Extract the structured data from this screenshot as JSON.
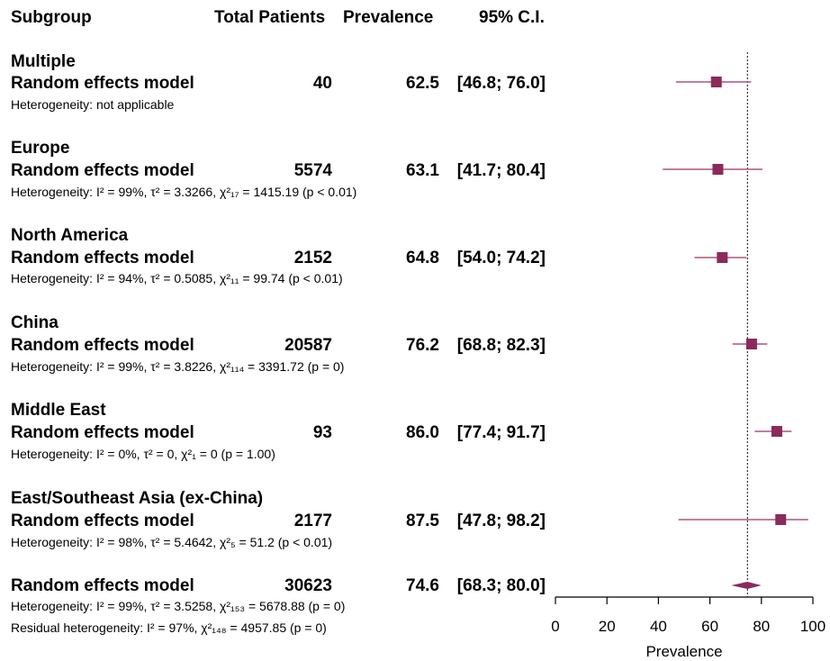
{
  "header": {
    "subgroup": "Subgroup",
    "total": "Total Patients",
    "prevalence": "Prevalence",
    "ci": "95% C.I."
  },
  "groups": [
    {
      "name": "Multiple",
      "model": "Random effects model",
      "total": "40",
      "prev": "62.5",
      "ci": "[46.8; 76.0]",
      "het": "Heterogeneity: not applicable"
    },
    {
      "name": "Europe",
      "model": "Random effects model",
      "total": "5574",
      "prev": "63.1",
      "ci": "[41.7; 80.4]",
      "het": "Heterogeneity: I² = 99%, τ² = 3.3266, χ²₁₇ = 1415.19 (p < 0.01)"
    },
    {
      "name": "North America",
      "model": "Random effects model",
      "total": "2152",
      "prev": "64.8",
      "ci": "[54.0; 74.2]",
      "het": "Heterogeneity: I² = 94%, τ² = 0.5085, χ²₁₁ = 99.74 (p < 0.01)"
    },
    {
      "name": "China",
      "model": "Random effects model",
      "total": "20587",
      "prev": "76.2",
      "ci": "[68.8; 82.3]",
      "het": "Heterogeneity: I² = 99%, τ² = 3.8226, χ²₁₁₄ = 3391.72 (p = 0)"
    },
    {
      "name": "Middle East",
      "model": "Random effects model",
      "total": "93",
      "prev": "86.0",
      "ci": "[77.4; 91.7]",
      "het": "Heterogeneity: I² = 0%, τ² = 0, χ²₁ = 0 (p = 1.00)"
    },
    {
      "name": "East/Southeast Asia (ex-China)",
      "model": "Random effects model",
      "total": "2177",
      "prev": "87.5",
      "ci": "[47.8; 98.2]",
      "het": "Heterogeneity: I² = 98%, τ² = 5.4642, χ²₅ = 51.2 (p < 0.01)"
    }
  ],
  "overall": {
    "model": "Random effects model",
    "total": "30623",
    "prev": "74.6",
    "ci": "[68.3; 80.0]",
    "het": "Heterogeneity: I² = 99%, τ² = 3.5258, χ²₁₅₃ = 5678.88 (p = 0)",
    "resid": "Residual heterogeneity: I² = 97%, χ²₁₄₈ = 4957.85 (p = 0)"
  },
  "chart_data": {
    "type": "forest",
    "xlabel": "Prevalence",
    "xlim": [
      0,
      100
    ],
    "xticks": [
      "0",
      "20",
      "40",
      "60",
      "80",
      "100"
    ],
    "reference_line": 74.6,
    "series": [
      {
        "label": "Multiple",
        "estimate": 62.5,
        "lower": 46.8,
        "upper": 76.0
      },
      {
        "label": "Europe",
        "estimate": 63.1,
        "lower": 41.7,
        "upper": 80.4
      },
      {
        "label": "North America",
        "estimate": 64.8,
        "lower": 54.0,
        "upper": 74.2
      },
      {
        "label": "China",
        "estimate": 76.2,
        "lower": 68.8,
        "upper": 82.3
      },
      {
        "label": "Middle East",
        "estimate": 86.0,
        "lower": 77.4,
        "upper": 91.7
      },
      {
        "label": "East/Southeast Asia (ex-China)",
        "estimate": 87.5,
        "lower": 47.8,
        "upper": 98.2
      }
    ],
    "overall": {
      "estimate": 74.6,
      "lower": 68.3,
      "upper": 80.0
    },
    "colors": {
      "marker": "#8b2a5b",
      "line": "#b0527f",
      "diamond": "#8b2a5b",
      "axis": "#000000"
    }
  }
}
